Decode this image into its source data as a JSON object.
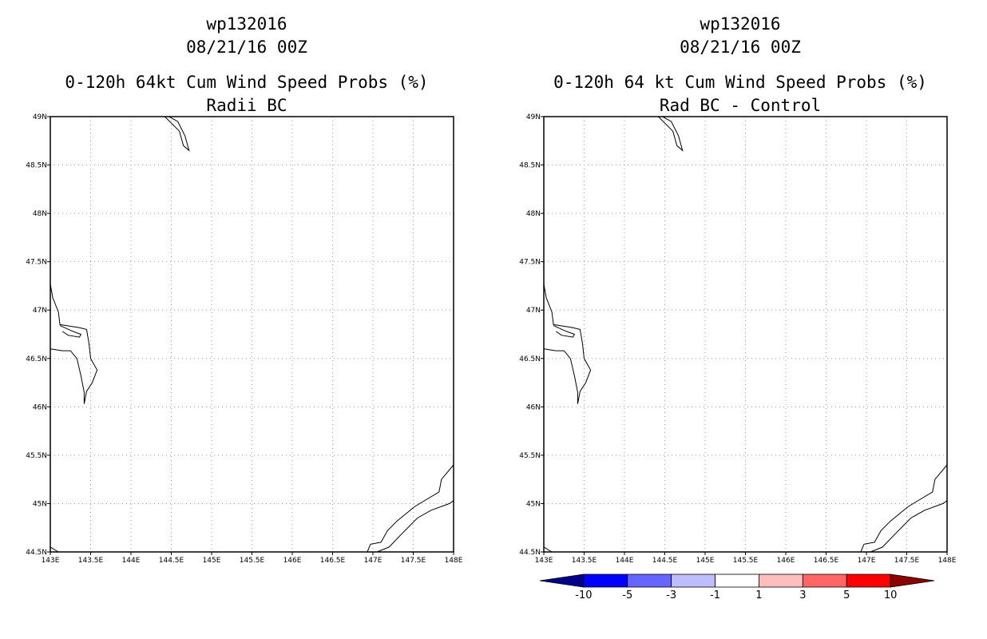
{
  "colors": {
    "coast": "#000000",
    "grid": "#999999",
    "frame": "#000000"
  },
  "axes": {
    "lon_min": 143,
    "lon_max": 148,
    "lat_min": 44.5,
    "lat_max": 49,
    "x_ticks": [
      {
        "value": 143,
        "label": "143E"
      },
      {
        "value": 143.5,
        "label": "143.5E"
      },
      {
        "value": 144,
        "label": "144E"
      },
      {
        "value": 144.5,
        "label": "144.5E"
      },
      {
        "value": 145,
        "label": "145E"
      },
      {
        "value": 145.5,
        "label": "145.5E"
      },
      {
        "value": 146,
        "label": "146E"
      },
      {
        "value": 146.5,
        "label": "146.5E"
      },
      {
        "value": 147,
        "label": "147E"
      },
      {
        "value": 147.5,
        "label": "147.5E"
      },
      {
        "value": 148,
        "label": "148E"
      }
    ],
    "y_ticks": [
      {
        "value": 49,
        "label": "49N"
      },
      {
        "value": 48.5,
        "label": "48.5N"
      },
      {
        "value": 48,
        "label": "48N"
      },
      {
        "value": 47.5,
        "label": "47.5N"
      },
      {
        "value": 47,
        "label": "47N"
      },
      {
        "value": 46.5,
        "label": "46.5N"
      },
      {
        "value": 46,
        "label": "46N"
      },
      {
        "value": 45.5,
        "label": "45.5N"
      },
      {
        "value": 45,
        "label": "45N"
      },
      {
        "value": 44.5,
        "label": "44.5N"
      }
    ]
  },
  "panels": [
    {
      "storm": "wp132016",
      "datetime": "08/21/16 00Z",
      "title": "0-120h 64kt Cum Wind Speed Probs (%)",
      "subtitle": "Radii BC"
    },
    {
      "storm": "wp132016",
      "datetime": "08/21/16 00Z",
      "title": "0-120h 64 kt Cum Wind Speed Probs (%)",
      "subtitle": "Rad BC - Control"
    }
  ],
  "colorbar": {
    "colors": [
      "#00008b",
      "#0000ff",
      "#6666ff",
      "#bdbdff",
      "#ffffff",
      "#ffbdbd",
      "#ff6666",
      "#ff0000",
      "#8b0000"
    ],
    "labels": [
      "-10",
      "-5",
      "-3",
      "-1",
      "1",
      "3",
      "5",
      "10"
    ]
  },
  "coastlines": [
    [
      [
        144.42,
        49.0
      ],
      [
        144.6,
        48.85
      ],
      [
        144.65,
        48.7
      ],
      [
        144.72,
        48.65
      ],
      [
        144.67,
        48.8
      ],
      [
        144.58,
        48.95
      ],
      [
        144.47,
        49.0
      ]
    ],
    [
      [
        143.0,
        47.27
      ],
      [
        143.03,
        47.13
      ],
      [
        143.1,
        46.98
      ],
      [
        143.12,
        46.85
      ],
      [
        143.2,
        46.84
      ],
      [
        143.35,
        46.82
      ],
      [
        143.45,
        46.8
      ],
      [
        143.48,
        46.65
      ],
      [
        143.5,
        46.5
      ],
      [
        143.58,
        46.38
      ],
      [
        143.52,
        46.25
      ],
      [
        143.45,
        46.16
      ],
      [
        143.42,
        46.03
      ],
      [
        143.42,
        46.15
      ],
      [
        143.38,
        46.32
      ],
      [
        143.33,
        46.5
      ],
      [
        143.25,
        46.58
      ],
      [
        143.15,
        46.58
      ],
      [
        143.0,
        46.6
      ]
    ],
    [
      [
        143.12,
        46.84
      ],
      [
        143.28,
        46.78
      ],
      [
        143.38,
        46.75
      ],
      [
        143.36,
        46.72
      ],
      [
        143.22,
        46.74
      ],
      [
        143.15,
        46.78
      ]
    ],
    [
      [
        143.0,
        44.55
      ],
      [
        143.1,
        44.5
      ]
    ],
    [
      [
        146.93,
        44.5
      ],
      [
        146.97,
        44.58
      ],
      [
        147.1,
        44.6
      ],
      [
        147.18,
        44.72
      ],
      [
        147.3,
        44.82
      ],
      [
        147.52,
        44.97
      ],
      [
        147.62,
        45.02
      ],
      [
        147.82,
        45.12
      ],
      [
        147.85,
        45.25
      ],
      [
        148.0,
        45.4
      ]
    ],
    [
      [
        147.05,
        44.5
      ],
      [
        147.2,
        44.55
      ],
      [
        147.35,
        44.68
      ],
      [
        147.55,
        44.85
      ],
      [
        147.72,
        44.93
      ],
      [
        147.95,
        45.0
      ],
      [
        148.0,
        45.03
      ]
    ]
  ]
}
